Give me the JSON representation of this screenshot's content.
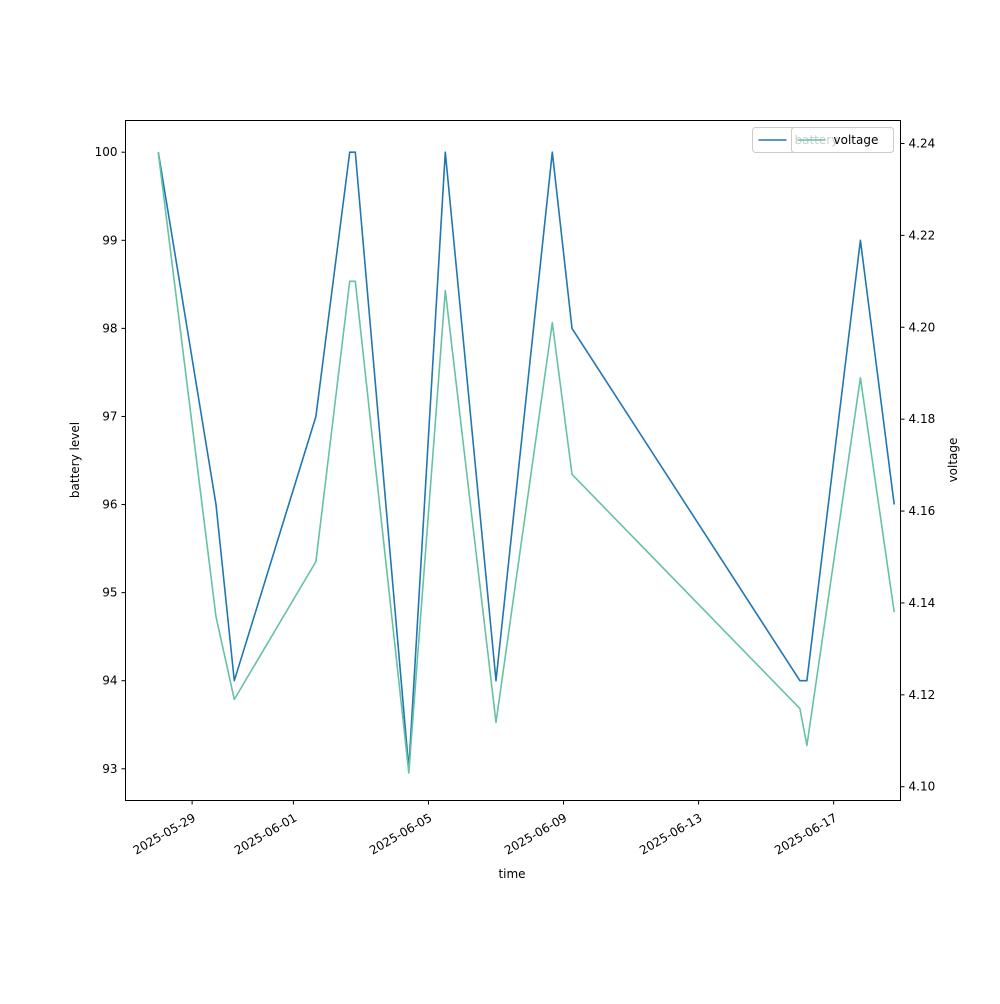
{
  "chart_data": {
    "type": "line",
    "title": "",
    "xlabel": "time",
    "ylabel": "battery level",
    "y2label": "voltage",
    "x_ticks": [
      "2025-05-29",
      "2025-06-01",
      "2025-06-05",
      "2025-06-09",
      "2025-06-13",
      "2025-06-17"
    ],
    "y_ticks": [
      "93",
      "94",
      "95",
      "96",
      "97",
      "98",
      "99",
      "100"
    ],
    "y2_ticks": [
      "4.10",
      "4.12",
      "4.14",
      "4.16",
      "4.18",
      "4.20",
      "4.22",
      "4.24"
    ],
    "ylim": [
      92.64,
      100.36
    ],
    "y2lim": [
      4.097,
      4.245
    ],
    "xlim": [
      "2025-05-27 00:40",
      "2025-06-18 23:30"
    ],
    "grid": false,
    "legend_position": "top-right",
    "colors": {
      "battery": "#1f77b4",
      "voltage": "#66c2a5"
    },
    "series": [
      {
        "name": "battery",
        "axis": "left",
        "color": "#1f77b4",
        "x": [
          "2025-05-28 00:00",
          "2025-05-29 17:00",
          "2025-05-30 06:00",
          "2025-06-01 16:00",
          "2025-06-02 16:00",
          "2025-06-02 20:00",
          "2025-06-04 10:00",
          "2025-06-05 12:00",
          "2025-06-07 00:00",
          "2025-06-08 16:00",
          "2025-06-09 06:00",
          "2025-06-16 00:00",
          "2025-06-16 05:00",
          "2025-06-17 19:00",
          "2025-06-18 19:00"
        ],
        "values": [
          100,
          96,
          94,
          97,
          100,
          100,
          93,
          100,
          94,
          100,
          98,
          94,
          94,
          99,
          96
        ]
      },
      {
        "name": "voltage",
        "axis": "right",
        "color": "#66c2a5",
        "x": [
          "2025-05-28 00:00",
          "2025-05-29 17:00",
          "2025-05-30 06:00",
          "2025-06-01 16:00",
          "2025-06-02 16:00",
          "2025-06-02 20:00",
          "2025-06-04 10:00",
          "2025-06-05 12:00",
          "2025-06-07 00:00",
          "2025-06-08 16:00",
          "2025-06-09 06:00",
          "2025-06-16 00:00",
          "2025-06-16 05:00",
          "2025-06-17 19:00",
          "2025-06-18 19:00"
        ],
        "values": [
          4.238,
          4.137,
          4.119,
          4.149,
          4.21,
          4.21,
          4.103,
          4.208,
          4.114,
          4.201,
          4.168,
          4.117,
          4.109,
          4.189,
          4.138
        ]
      }
    ],
    "legends": [
      {
        "position": "top-right",
        "entries": [
          "battery"
        ]
      },
      {
        "position": "top-right",
        "entries": [
          "voltage"
        ]
      }
    ]
  }
}
